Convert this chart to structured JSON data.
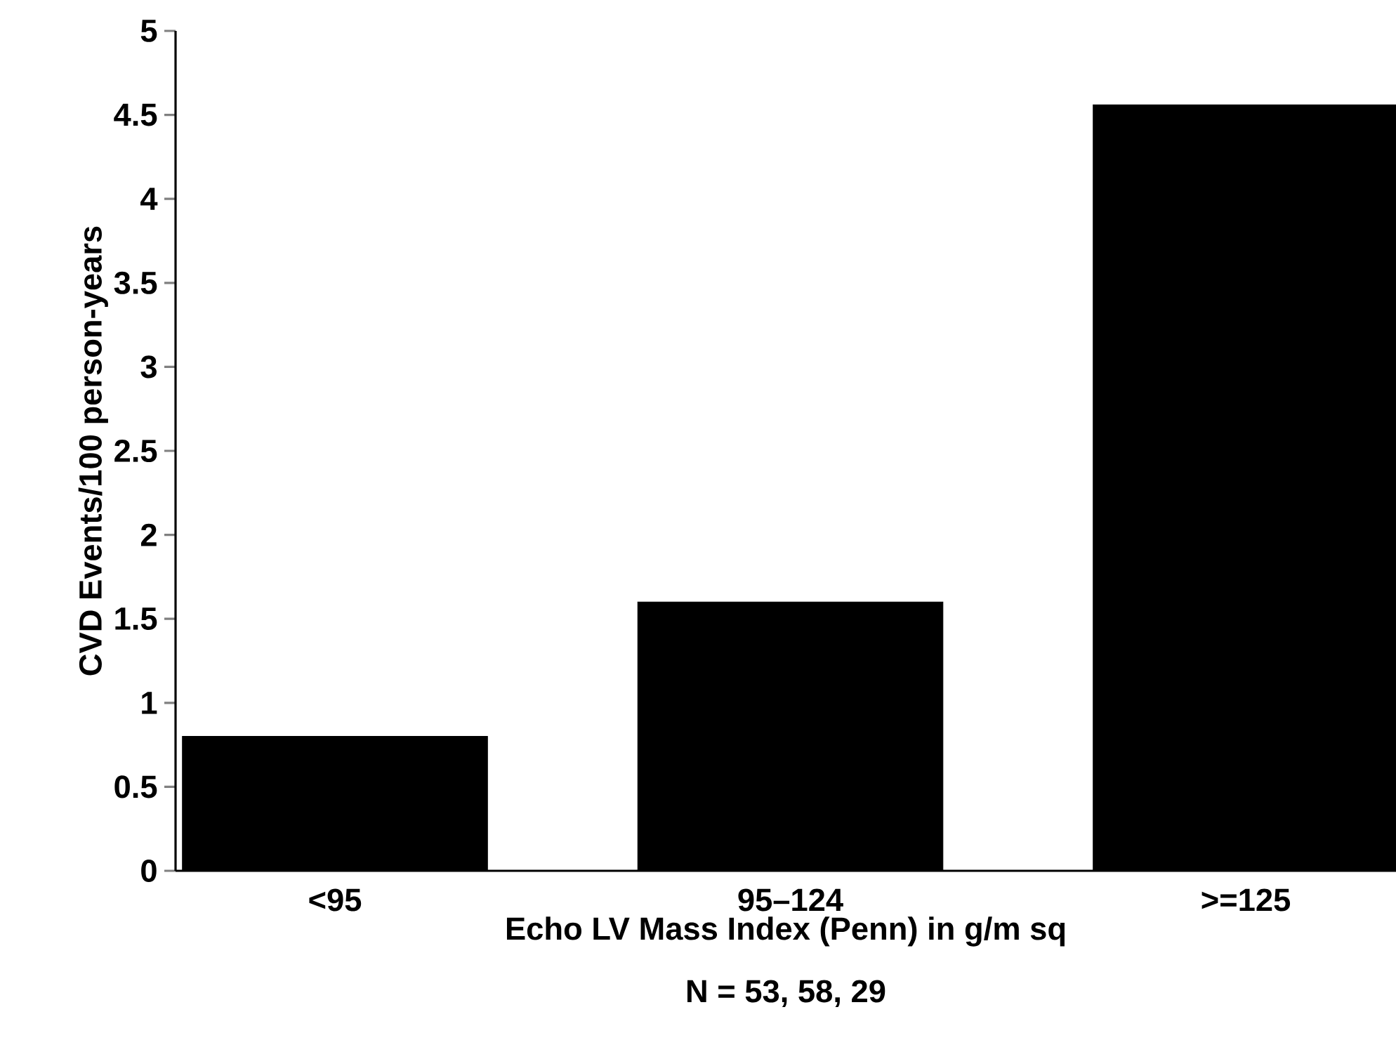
{
  "chart_data": {
    "type": "bar",
    "categories": [
      "<95",
      "95–124",
      ">=125"
    ],
    "values": [
      0.8,
      1.6,
      4.56
    ],
    "color": "#000000",
    "xlabel": "Echo LV Mass Index (Penn) in g/m sq",
    "ylabel": "CVD Events/100 person-years",
    "annotations": [
      "N = 53, 58, 29"
    ],
    "ylim": [
      0,
      5
    ],
    "yticks": [
      0,
      0.5,
      1,
      1.5,
      2,
      2.5,
      3,
      3.5,
      4,
      4.5,
      5
    ]
  }
}
